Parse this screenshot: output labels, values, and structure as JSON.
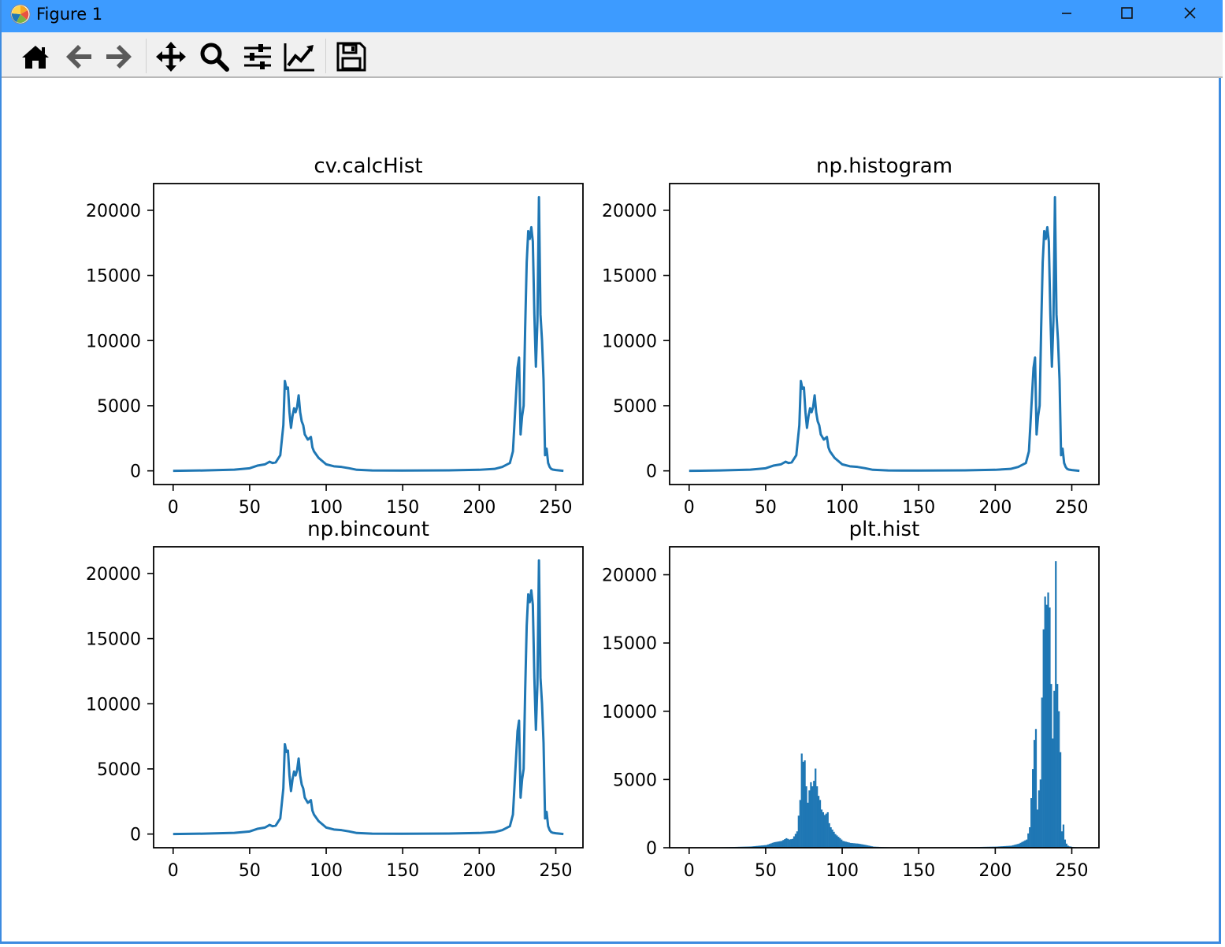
{
  "window": {
    "title": "Figure 1",
    "icon": "matplotlib-logo-icon",
    "controls": [
      "minimize-icon",
      "maximize-icon",
      "close-icon"
    ]
  },
  "toolbar": {
    "buttons": [
      {
        "name": "home-button",
        "icon": "home-icon"
      },
      {
        "name": "back-button",
        "icon": "arrow-left-icon"
      },
      {
        "name": "forward-button",
        "icon": "arrow-right-icon"
      },
      {
        "name": "pan-button",
        "icon": "move-arrows-icon"
      },
      {
        "name": "zoom-button",
        "icon": "magnifier-icon"
      },
      {
        "name": "subplots-button",
        "icon": "sliders-icon"
      },
      {
        "name": "edit-axes-button",
        "icon": "line-chart-icon"
      },
      {
        "name": "save-button",
        "icon": "floppy-disk-icon"
      }
    ]
  },
  "colors": {
    "series": "#1f77b4"
  },
  "chart_data": [
    {
      "type": "line",
      "title": "cv.calcHist",
      "xlim": [
        -12.75,
        267.75
      ],
      "ylim": [
        -1050,
        22050
      ],
      "xticks": [
        0,
        50,
        100,
        150,
        200,
        250
      ],
      "yticks": [
        0,
        5000,
        10000,
        15000,
        20000
      ],
      "x": [
        0,
        20,
        40,
        50,
        55,
        60,
        63,
        65,
        67,
        70,
        72,
        73,
        74,
        75,
        76,
        77,
        78,
        79,
        80,
        81,
        82,
        83,
        84,
        85,
        86,
        88,
        90,
        91,
        92,
        95,
        100,
        105,
        110,
        115,
        120,
        130,
        150,
        180,
        200,
        210,
        215,
        220,
        222,
        225,
        226,
        227,
        228,
        229,
        230,
        231,
        232,
        233,
        234,
        235,
        236,
        237,
        238,
        239,
        240,
        241,
        242,
        243,
        244,
        245,
        246,
        247,
        248,
        250,
        255
      ],
      "y": [
        0,
        30,
        90,
        200,
        400,
        500,
        700,
        600,
        650,
        1200,
        3500,
        6900,
        6300,
        6400,
        4500,
        3300,
        4200,
        4800,
        4500,
        4900,
        5800,
        4500,
        3800,
        3500,
        2800,
        2400,
        2600,
        1800,
        1500,
        1000,
        500,
        350,
        300,
        200,
        80,
        30,
        20,
        40,
        80,
        150,
        300,
        600,
        1500,
        7900,
        8700,
        2800,
        4200,
        5000,
        11000,
        16000,
        18400,
        17800,
        18700,
        17600,
        12000,
        8000,
        11500,
        21000,
        12000,
        10000,
        7000,
        1200,
        1700,
        600,
        300,
        150,
        100,
        60,
        0
      ]
    },
    {
      "type": "line",
      "title": "np.histogram",
      "xlim": [
        -12.75,
        267.75
      ],
      "ylim": [
        -1050,
        22050
      ],
      "xticks": [
        0,
        50,
        100,
        150,
        200,
        250
      ],
      "yticks": [
        0,
        5000,
        10000,
        15000,
        20000
      ],
      "x": [
        0,
        20,
        40,
        50,
        55,
        60,
        63,
        65,
        67,
        70,
        72,
        73,
        74,
        75,
        76,
        77,
        78,
        79,
        80,
        81,
        82,
        83,
        84,
        85,
        86,
        88,
        90,
        91,
        92,
        95,
        100,
        105,
        110,
        115,
        120,
        130,
        150,
        180,
        200,
        210,
        215,
        220,
        222,
        225,
        226,
        227,
        228,
        229,
        230,
        231,
        232,
        233,
        234,
        235,
        236,
        237,
        238,
        239,
        240,
        241,
        242,
        243,
        244,
        245,
        246,
        247,
        248,
        250,
        255
      ],
      "y": [
        0,
        30,
        90,
        200,
        400,
        500,
        700,
        600,
        650,
        1200,
        3500,
        6900,
        6300,
        6400,
        4500,
        3300,
        4200,
        4800,
        4500,
        4900,
        5800,
        4500,
        3800,
        3500,
        2800,
        2400,
        2600,
        1800,
        1500,
        1000,
        500,
        350,
        300,
        200,
        80,
        30,
        20,
        40,
        80,
        150,
        300,
        600,
        1500,
        7900,
        8700,
        2800,
        4200,
        5000,
        11000,
        16000,
        18400,
        17800,
        18700,
        17600,
        12000,
        8000,
        11500,
        21000,
        12000,
        10000,
        7000,
        1200,
        1700,
        600,
        300,
        150,
        100,
        60,
        0
      ]
    },
    {
      "type": "line",
      "title": "np.bincount",
      "xlim": [
        -12.75,
        267.75
      ],
      "ylim": [
        -1050,
        22050
      ],
      "xticks": [
        0,
        50,
        100,
        150,
        200,
        250
      ],
      "yticks": [
        0,
        5000,
        10000,
        15000,
        20000
      ],
      "x": [
        0,
        20,
        40,
        50,
        55,
        60,
        63,
        65,
        67,
        70,
        72,
        73,
        74,
        75,
        76,
        77,
        78,
        79,
        80,
        81,
        82,
        83,
        84,
        85,
        86,
        88,
        90,
        91,
        92,
        95,
        100,
        105,
        110,
        115,
        120,
        130,
        150,
        180,
        200,
        210,
        215,
        220,
        222,
        225,
        226,
        227,
        228,
        229,
        230,
        231,
        232,
        233,
        234,
        235,
        236,
        237,
        238,
        239,
        240,
        241,
        242,
        243,
        244,
        245,
        246,
        247,
        248,
        250,
        255
      ],
      "y": [
        0,
        30,
        90,
        200,
        400,
        500,
        700,
        600,
        650,
        1200,
        3500,
        6900,
        6300,
        6400,
        4500,
        3300,
        4200,
        4800,
        4500,
        4900,
        5800,
        4500,
        3800,
        3500,
        2800,
        2400,
        2600,
        1800,
        1500,
        1000,
        500,
        350,
        300,
        200,
        80,
        30,
        20,
        40,
        80,
        150,
        300,
        600,
        1500,
        7900,
        8700,
        2800,
        4200,
        5000,
        11000,
        16000,
        18400,
        17800,
        18700,
        17600,
        12000,
        8000,
        11500,
        21000,
        12000,
        10000,
        7000,
        1200,
        1700,
        600,
        300,
        150,
        100,
        60,
        0
      ]
    },
    {
      "type": "bar",
      "title": "plt.hist",
      "xlim": [
        -12.75,
        267.75
      ],
      "ylim": [
        0,
        22050
      ],
      "xticks": [
        0,
        50,
        100,
        150,
        200,
        250
      ],
      "yticks": [
        0,
        5000,
        10000,
        15000,
        20000
      ],
      "bins": [
        0,
        256
      ],
      "x": [
        0,
        20,
        40,
        50,
        55,
        60,
        63,
        65,
        67,
        70,
        72,
        73,
        74,
        75,
        76,
        77,
        78,
        79,
        80,
        81,
        82,
        83,
        84,
        85,
        86,
        88,
        90,
        91,
        92,
        95,
        100,
        105,
        110,
        115,
        120,
        130,
        150,
        180,
        200,
        210,
        215,
        220,
        222,
        225,
        226,
        227,
        228,
        229,
        230,
        231,
        232,
        233,
        234,
        235,
        236,
        237,
        238,
        239,
        240,
        241,
        242,
        243,
        244,
        245,
        246,
        247,
        248,
        250,
        255
      ],
      "y": [
        0,
        30,
        90,
        200,
        400,
        500,
        700,
        600,
        650,
        1200,
        3500,
        6900,
        6300,
        6400,
        4500,
        3300,
        4200,
        4800,
        4500,
        4900,
        5800,
        4500,
        3800,
        3500,
        2800,
        2400,
        2600,
        1800,
        1500,
        1000,
        500,
        350,
        300,
        200,
        80,
        30,
        20,
        40,
        80,
        150,
        300,
        600,
        1500,
        7900,
        8700,
        2800,
        4200,
        5000,
        11000,
        16000,
        18400,
        17800,
        18700,
        17600,
        12000,
        8000,
        11500,
        21000,
        12000,
        10000,
        7000,
        1200,
        1700,
        600,
        300,
        150,
        100,
        60,
        0
      ]
    }
  ]
}
